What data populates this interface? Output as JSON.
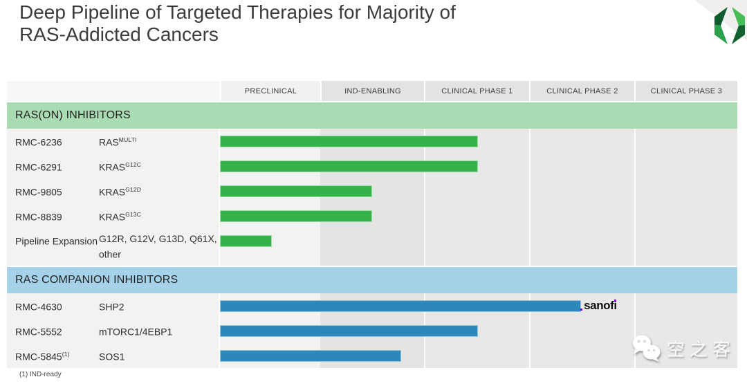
{
  "slide": {
    "title_line1": "Deep Pipeline of Targeted Therapies for Majority of",
    "title_line2": "RAS-Addicted Cancers",
    "footnote": "(1) IND-ready",
    "watermark_text": "空之客"
  },
  "columns": [
    "PRECLINICAL",
    "IND-ENABLING",
    "CLINICAL PHASE 1",
    "CLINICAL PHASE 2",
    "CLINICAL PHASE 3"
  ],
  "sections": [
    {
      "label": "RAS(ON) INHIBITORS",
      "rows": [
        {
          "name": "RMC-6236",
          "name_sup": "",
          "target": "RAS",
          "target_sup": "MULTI",
          "bar_cols": 2.49
        },
        {
          "name": "RMC-6291",
          "name_sup": "",
          "target": "KRAS",
          "target_sup": "G12C",
          "bar_cols": 2.49
        },
        {
          "name": "RMC-9805",
          "name_sup": "",
          "target": "KRAS",
          "target_sup": "G12D",
          "bar_cols": 1.47
        },
        {
          "name": "RMC-8839",
          "name_sup": "",
          "target": "KRAS",
          "target_sup": "G13C",
          "bar_cols": 1.47
        },
        {
          "name": "Pipeline Expansion",
          "name_sup": "",
          "target": "G12R, G12V, G13D, Q61X, other",
          "target_sup": "",
          "bar_cols": 0.5
        }
      ]
    },
    {
      "label": "RAS COMPANION INHIBITORS",
      "rows": [
        {
          "name": "RMC-4630",
          "name_sup": "",
          "target": "SHP2",
          "target_sup": "",
          "bar_cols": 3.49,
          "partner": "sanofi"
        },
        {
          "name": "RMC-5552",
          "name_sup": "",
          "target": "mTORC1/4EBP1",
          "target_sup": "",
          "bar_cols": 2.49
        },
        {
          "name": "RMC-5845",
          "name_sup": "(1)",
          "target": "SOS1",
          "target_sup": "",
          "bar_cols": 1.75
        }
      ]
    }
  ],
  "colors": {
    "green_bar": "#36b24b",
    "green_band": "#a9dcb2",
    "blue_bar": "#2e87ba",
    "blue_band": "#a6d2e9",
    "sanofi_purple": "#7a00e6"
  },
  "chart_data": {
    "type": "bar",
    "orientation": "horizontal",
    "title": "Deep Pipeline of Targeted Therapies for Majority of RAS-Addicted Cancers",
    "x_axis_phases": [
      "PRECLINICAL",
      "IND-ENABLING",
      "CLINICAL PHASE 1",
      "CLINICAL PHASE 2",
      "CLINICAL PHASE 3"
    ],
    "xlim_phase_units": [
      0,
      5
    ],
    "series": [
      {
        "section": "RAS(ON) INHIBITORS",
        "program": "RMC-6236",
        "target": "RAS(MULTI)",
        "progress_phase_units": 2.49,
        "current_stage": "CLINICAL PHASE 1",
        "color": "#36b24b"
      },
      {
        "section": "RAS(ON) INHIBITORS",
        "program": "RMC-6291",
        "target": "KRAS(G12C)",
        "progress_phase_units": 2.49,
        "current_stage": "CLINICAL PHASE 1",
        "color": "#36b24b"
      },
      {
        "section": "RAS(ON) INHIBITORS",
        "program": "RMC-9805",
        "target": "KRAS(G12D)",
        "progress_phase_units": 1.47,
        "current_stage": "IND-ENABLING",
        "color": "#36b24b"
      },
      {
        "section": "RAS(ON) INHIBITORS",
        "program": "RMC-8839",
        "target": "KRAS(G13C)",
        "progress_phase_units": 1.47,
        "current_stage": "IND-ENABLING",
        "color": "#36b24b"
      },
      {
        "section": "RAS(ON) INHIBITORS",
        "program": "Pipeline Expansion",
        "target": "G12R, G12V, G13D, Q61X, other",
        "progress_phase_units": 0.5,
        "current_stage": "PRECLINICAL",
        "color": "#36b24b"
      },
      {
        "section": "RAS COMPANION INHIBITORS",
        "program": "RMC-4630",
        "target": "SHP2",
        "partner": "sanofi",
        "progress_phase_units": 3.49,
        "current_stage": "CLINICAL PHASE 2",
        "color": "#2e87ba"
      },
      {
        "section": "RAS COMPANION INHIBITORS",
        "program": "RMC-5552",
        "target": "mTORC1/4EBP1",
        "progress_phase_units": 2.49,
        "current_stage": "CLINICAL PHASE 1",
        "color": "#2e87ba"
      },
      {
        "section": "RAS COMPANION INHIBITORS",
        "program": "RMC-5845",
        "target": "SOS1",
        "program_footnote": "(1)",
        "progress_phase_units": 1.75,
        "current_stage": "IND-ENABLING",
        "color": "#2e87ba"
      }
    ]
  }
}
